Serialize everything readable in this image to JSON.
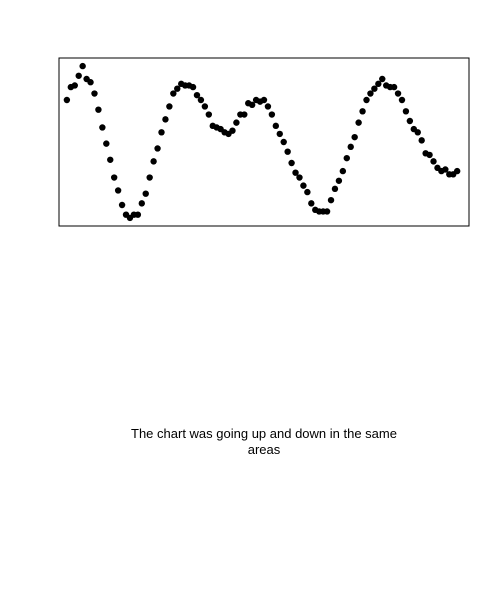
{
  "chart_data": {
    "type": "scatter",
    "title": "",
    "xlabel": "",
    "ylabel": "",
    "grid": false,
    "legend": "none",
    "axes_ticks_visible": false,
    "marker_color": "#000000",
    "frame_color": "#000000",
    "background_color": "#ffffff",
    "xlim": [
      -2,
      102
    ],
    "ylim": [
      -0.02,
      1.02
    ],
    "x": [
      0,
      1,
      2,
      3,
      4,
      5,
      6,
      7,
      8,
      9,
      10,
      11,
      12,
      13,
      14,
      15,
      16,
      17,
      18,
      19,
      20,
      21,
      22,
      23,
      24,
      25,
      26,
      27,
      28,
      29,
      30,
      31,
      32,
      33,
      34,
      35,
      36,
      37,
      38,
      39,
      40,
      41,
      42,
      43,
      44,
      45,
      46,
      47,
      48,
      49,
      50,
      51,
      52,
      53,
      54,
      55,
      56,
      57,
      58,
      59,
      60,
      61,
      62,
      63,
      64,
      65,
      66,
      67,
      68,
      69,
      70,
      71,
      72,
      73,
      74,
      75,
      76,
      77,
      78,
      79,
      80,
      81,
      82,
      83,
      84,
      85,
      86,
      87,
      88,
      89,
      90,
      91,
      92,
      93,
      94,
      95,
      96,
      97,
      98,
      99
    ],
    "y": [
      0.76,
      0.84,
      0.85,
      0.91,
      0.97,
      0.89,
      0.87,
      0.8,
      0.7,
      0.59,
      0.49,
      0.39,
      0.28,
      0.2,
      0.11,
      0.05,
      0.03,
      0.05,
      0.05,
      0.12,
      0.18,
      0.28,
      0.38,
      0.46,
      0.56,
      0.64,
      0.72,
      0.8,
      0.83,
      0.86,
      0.85,
      0.85,
      0.84,
      0.79,
      0.76,
      0.72,
      0.67,
      0.6,
      0.59,
      0.58,
      0.56,
      0.55,
      0.57,
      0.62,
      0.67,
      0.67,
      0.74,
      0.73,
      0.76,
      0.75,
      0.76,
      0.72,
      0.67,
      0.6,
      0.55,
      0.5,
      0.44,
      0.37,
      0.31,
      0.28,
      0.23,
      0.19,
      0.12,
      0.08,
      0.07,
      0.07,
      0.07,
      0.14,
      0.21,
      0.26,
      0.32,
      0.4,
      0.47,
      0.53,
      0.62,
      0.69,
      0.76,
      0.8,
      0.83,
      0.86,
      0.89,
      0.85,
      0.84,
      0.84,
      0.8,
      0.76,
      0.69,
      0.63,
      0.58,
      0.56,
      0.51,
      0.43,
      0.42,
      0.38,
      0.34,
      0.32,
      0.33,
      0.3,
      0.3,
      0.32
    ]
  },
  "caption": "The chart was going up and down in the same areas"
}
